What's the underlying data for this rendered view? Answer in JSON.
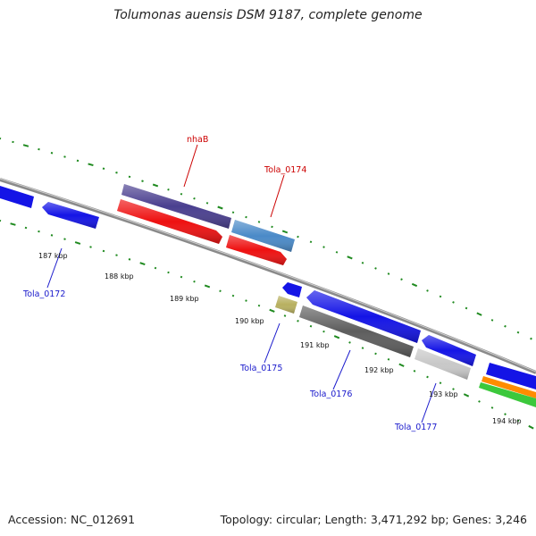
{
  "title": "Tolumonas auensis DSM 9187, complete genome",
  "accession": "Accession: NC_012691",
  "summary": "Topology: circular; Length: 3,471,292 bp; Genes: 3,246",
  "colors": {
    "backbone": "#8a8a8a",
    "tick": "#1f8a1f",
    "forward_label": "#cc0000",
    "reverse_label": "#1a1acc",
    "gene_blue": "#1414e6",
    "gene_red": "#ee1111",
    "gene_purple": "#4a3f8f",
    "gene_steel": "#4a8ac8",
    "gene_gray": "#5e5e5e",
    "gene_silver": "#c8c8c8",
    "gene_olive": "#b8b060",
    "gene_orange": "#ff8c00",
    "gene_green": "#3cc83c"
  },
  "ticks": [
    "187 kbp",
    "188 kbp",
    "189 kbp",
    "190 kbp",
    "191 kbp",
    "192 kbp",
    "193 kbp",
    "194 kbp"
  ],
  "gene_labels": {
    "nhaB": "nhaB",
    "tola_0174": "Tola_0174",
    "tola_0172": "Tola_0172",
    "tola_0175": "Tola_0175",
    "tola_0176": "Tola_0176",
    "tola_0177": "Tola_0177"
  }
}
